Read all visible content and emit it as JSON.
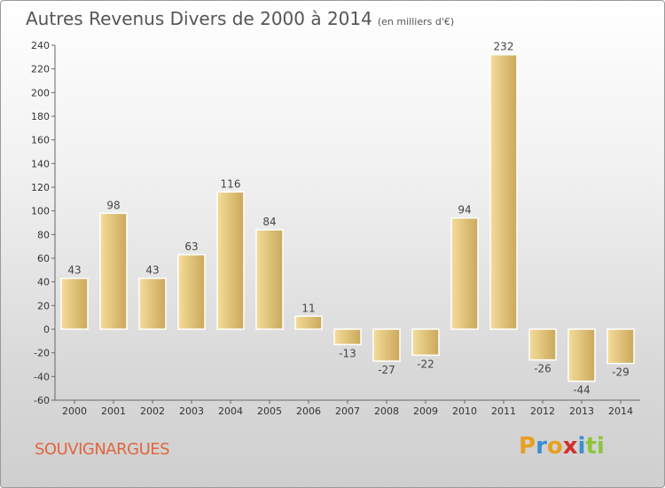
{
  "header": {
    "title": "Autres Revenus Divers de 2000 à 2014",
    "unit": "(en milliers d'€)"
  },
  "footer": {
    "city": "SOUVIGNARGUES",
    "logo": [
      "P",
      "r",
      "o",
      "x",
      "i",
      "ti"
    ]
  },
  "colors": {
    "bar_light": "#f5dc9a",
    "bar_dark": "#c9a85a",
    "city": "#e0663f"
  },
  "chart_data": {
    "type": "bar",
    "title": "Autres Revenus Divers de 2000 à 2014",
    "subtitle": "(en milliers d'€)",
    "categories": [
      "2000",
      "2001",
      "2002",
      "2003",
      "2004",
      "2005",
      "2006",
      "2007",
      "2008",
      "2009",
      "2010",
      "2011",
      "2012",
      "2013",
      "2014"
    ],
    "values": [
      43,
      98,
      43,
      63,
      116,
      84,
      11,
      -13,
      -27,
      -22,
      94,
      232,
      -26,
      -44,
      -29
    ],
    "ylim": [
      -60,
      240
    ],
    "yticks": [
      240,
      220,
      200,
      180,
      160,
      140,
      120,
      100,
      80,
      60,
      40,
      20,
      0,
      -20,
      -40,
      -60
    ],
    "grid": false
  }
}
